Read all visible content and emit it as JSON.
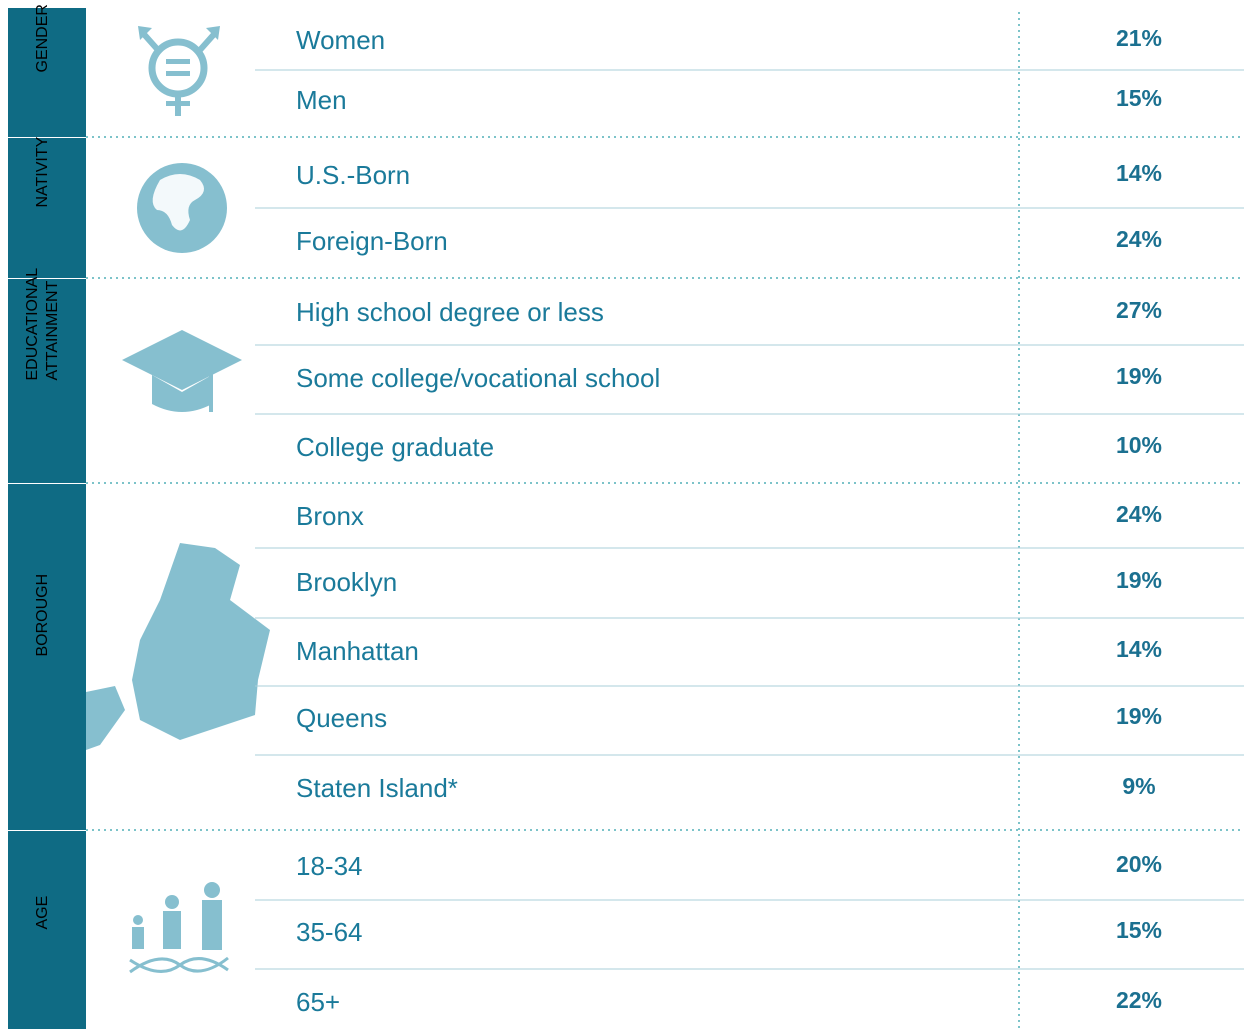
{
  "groups": [
    {
      "label": [
        "GENDER"
      ],
      "rows": [
        {
          "label": "Women",
          "value": "21%"
        },
        {
          "label": "Men",
          "value": "15%"
        }
      ]
    },
    {
      "label": [
        "NATIVITY"
      ],
      "rows": [
        {
          "label": "U.S.-Born",
          "value": "14%"
        },
        {
          "label": "Foreign-Born",
          "value": "24%"
        }
      ]
    },
    {
      "label": [
        "EDUCATIONAL",
        "ATTAINMENT"
      ],
      "rows": [
        {
          "label": "High school degree or less",
          "value": "27%"
        },
        {
          "label": "Some college/vocational school",
          "value": "19%"
        },
        {
          "label": "College graduate",
          "value": "10%"
        }
      ]
    },
    {
      "label": [
        "BOROUGH"
      ],
      "rows": [
        {
          "label": "Bronx",
          "value": "24%"
        },
        {
          "label": "Brooklyn",
          "value": "19%"
        },
        {
          "label": "Manhattan",
          "value": "14%"
        },
        {
          "label": "Queens",
          "value": "19%"
        },
        {
          "label": "Staten Island*",
          "value": "9%"
        }
      ]
    },
    {
      "label": [
        "AGE"
      ],
      "rows": [
        {
          "label": "18-34",
          "value": "20%"
        },
        {
          "label": "35-64",
          "value": "15%"
        },
        {
          "label": "65+",
          "value": "22%"
        }
      ]
    }
  ]
}
